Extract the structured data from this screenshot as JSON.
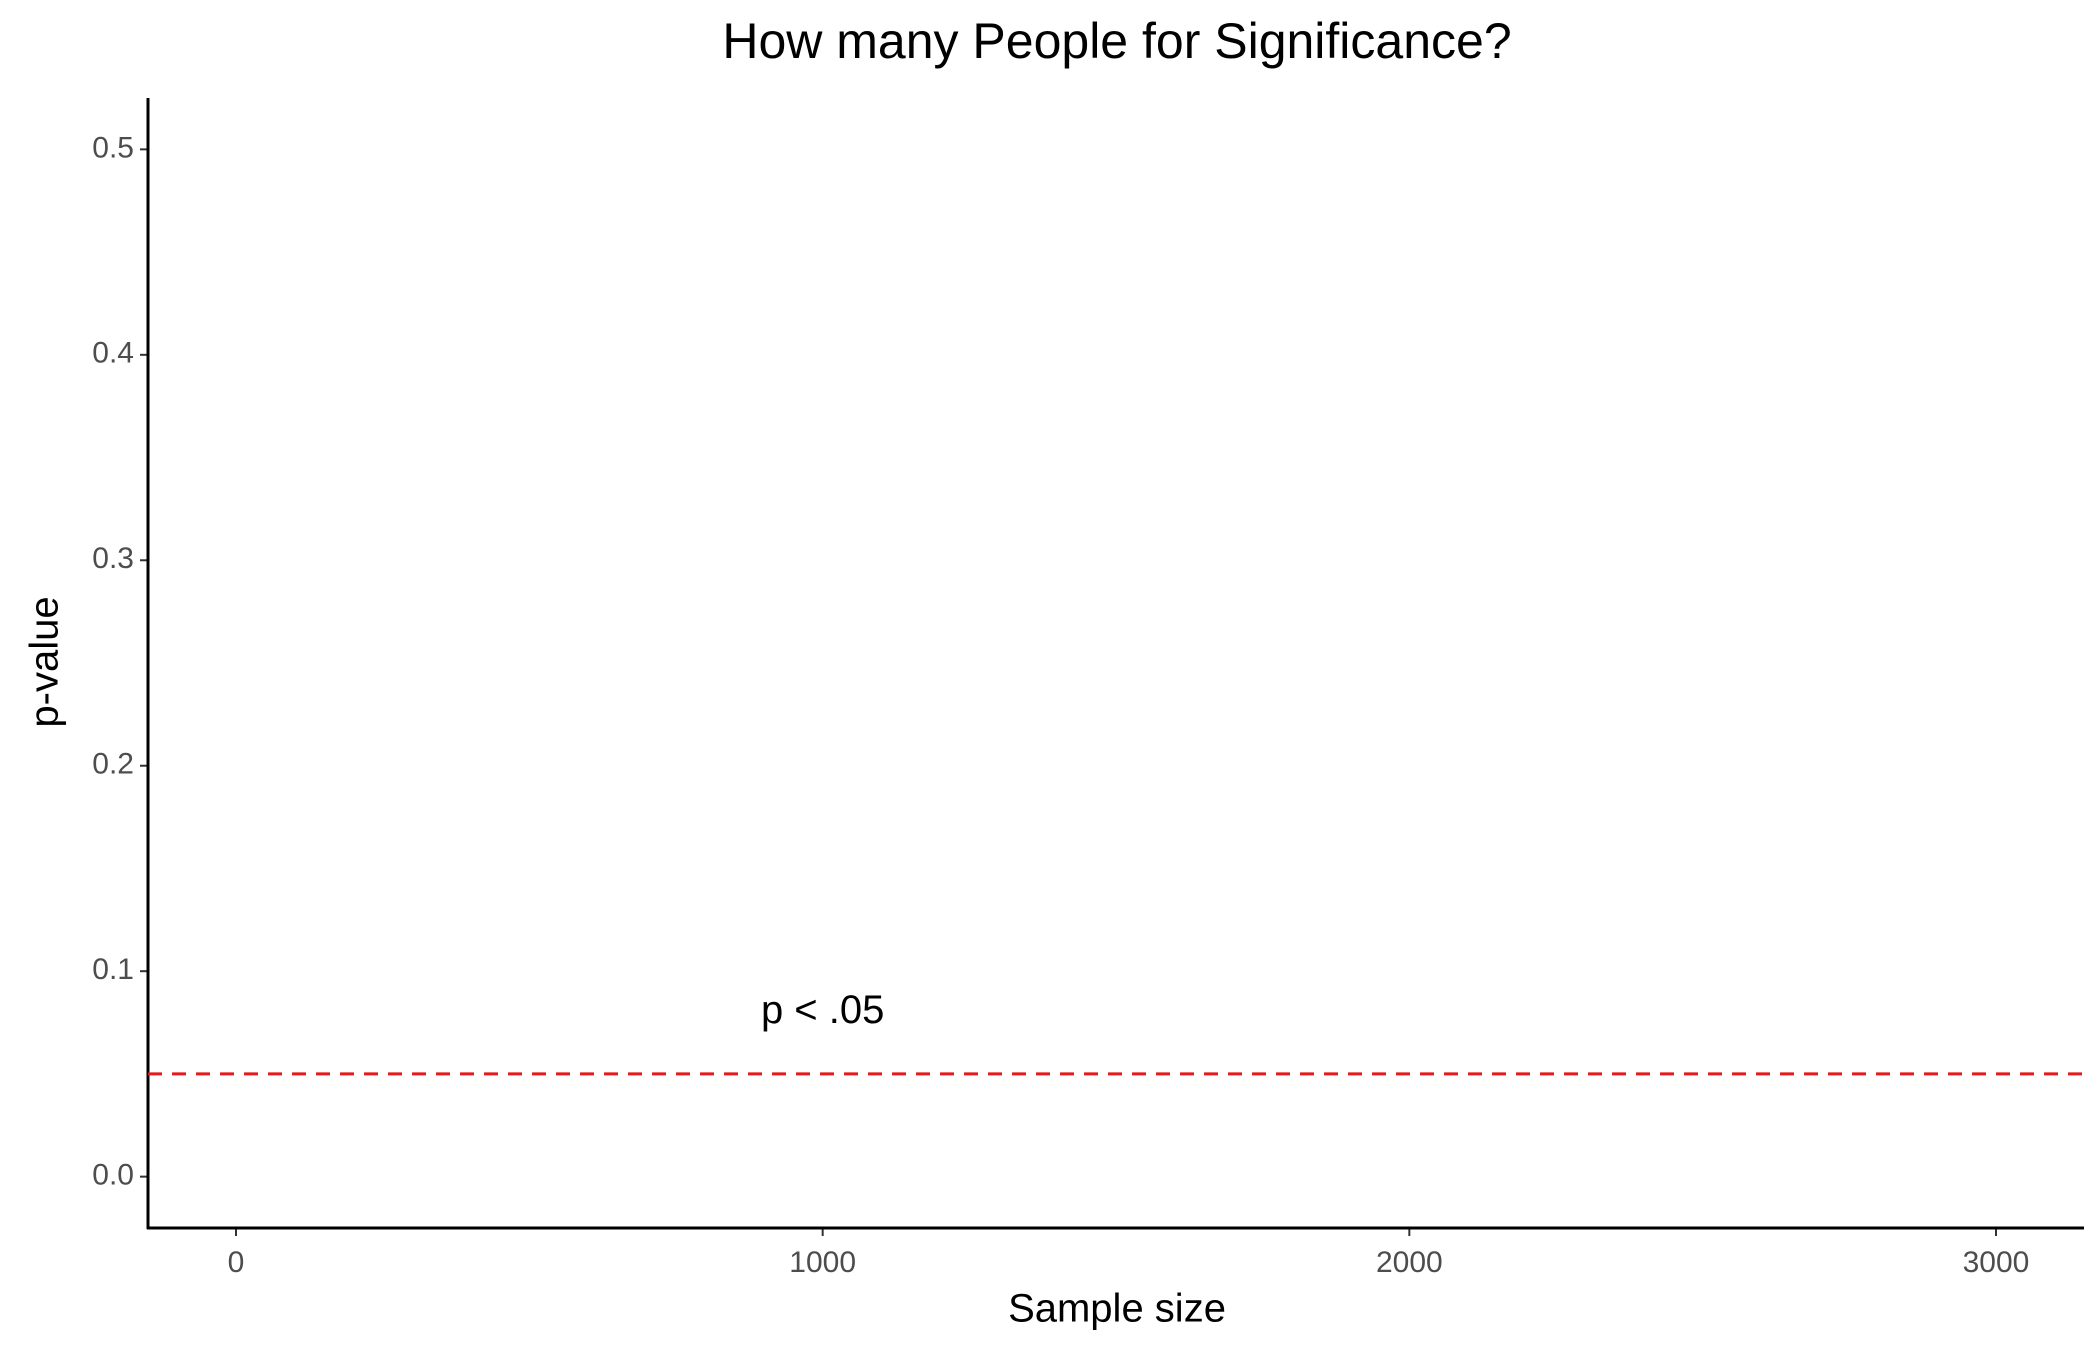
{
  "chart_data": {
    "type": "line",
    "title": "How many People for Significance?",
    "x_label": "Sample size",
    "y_label": "p-value",
    "series": [],
    "xlim": [
      -150,
      3150
    ],
    "xticks": [
      0,
      1000,
      2000,
      3000
    ],
    "ylim": [
      -0.025,
      0.525
    ],
    "yticks": [
      {
        "value": 0,
        "label": "0.0"
      },
      0.1,
      0.2,
      0.3,
      0.4,
      0.5
    ],
    "grid": false,
    "hline": {
      "y": 0.05,
      "color": "#e41a1c",
      "linestyle": "dashed"
    },
    "annotation": {
      "text": "p < .05",
      "x": 1000,
      "y": 0.08
    }
  }
}
